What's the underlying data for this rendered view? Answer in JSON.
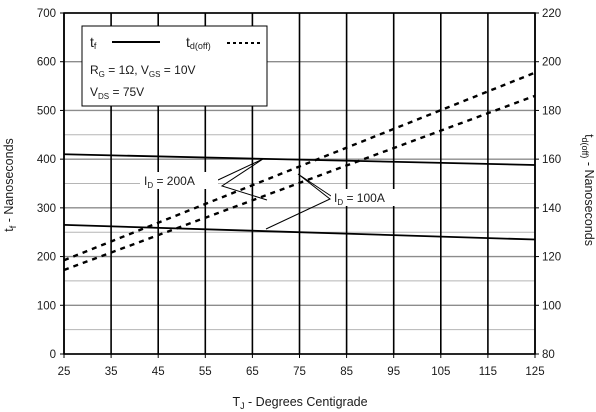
{
  "chart_data": {
    "type": "line",
    "x_axis": {
      "label": "T",
      "label_sub": "J",
      "label_rest": " - Degrees Centigrade",
      "range": [
        25,
        125
      ],
      "ticks": [
        25,
        35,
        45,
        55,
        65,
        75,
        85,
        95,
        105,
        115,
        125
      ]
    },
    "y_left": {
      "label": "t",
      "label_sub": "f",
      "label_rest": " - Nanoseconds",
      "range": [
        0,
        700
      ],
      "ticks": [
        0,
        100,
        200,
        300,
        400,
        500,
        600,
        700
      ],
      "minor_gridlines": [
        50,
        150,
        250,
        350,
        450
      ]
    },
    "y_right": {
      "label": "t",
      "label_sub": "d(off)",
      "label_rest": " - Nanoseconds",
      "range": [
        80,
        220
      ],
      "ticks": [
        80,
        100,
        120,
        140,
        160,
        180,
        200,
        220
      ]
    },
    "grid": true,
    "legend": {
      "position": "top-left",
      "tf_label": "t",
      "tf_sub": "f",
      "td_label": "t",
      "td_sub": "d(off)",
      "line1": {
        "a": "R",
        "a_sub": "G",
        "b": " = 1Ω,  V",
        "b_sub": "GS",
        "c": " = 10V"
      },
      "line2": {
        "a": "V",
        "a_sub": "DS",
        "b": " = 75V"
      }
    },
    "series": [
      {
        "param": "tf",
        "condition": "ID = 200A",
        "axis": "left",
        "style": "solid",
        "x": [
          25,
          125
        ],
        "y": [
          410,
          388
        ]
      },
      {
        "param": "tf",
        "condition": "ID = 100A",
        "axis": "left",
        "style": "solid",
        "x": [
          25,
          125
        ],
        "y": [
          265,
          235
        ]
      },
      {
        "param": "td(off)",
        "condition": "ID = 200A",
        "axis": "right",
        "style": "dashed",
        "x": [
          25,
          125
        ],
        "y": [
          118.5,
          195.5
        ]
      },
      {
        "param": "td(off)",
        "condition": "ID = 100A",
        "axis": "right",
        "style": "dashed",
        "x": [
          25,
          125
        ],
        "y": [
          114.5,
          186
        ]
      }
    ],
    "annotations": [
      {
        "label": "I",
        "label_sub": "D",
        "label_rest": " = 200A"
      },
      {
        "label": "I",
        "label_sub": "D",
        "label_rest": " = 100A"
      }
    ]
  }
}
